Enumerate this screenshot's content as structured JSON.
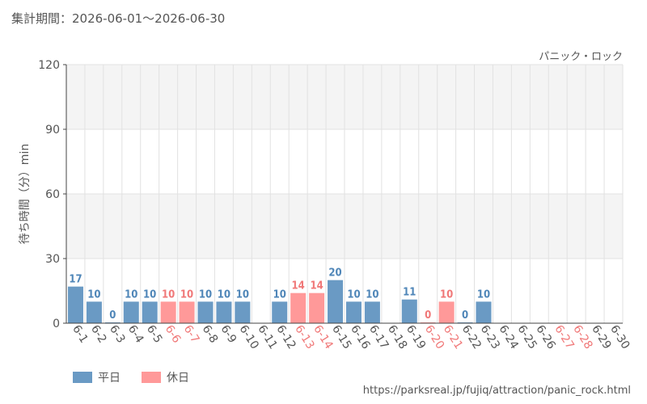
{
  "header": {
    "period_label": "集計期間：2026-06-01～2026-06-30"
  },
  "footer": {
    "url": "https://parksreal.jp/fujiq/attraction/panic_rock.html"
  },
  "colors": {
    "weekday": "#6a9ac4",
    "weekday_label": "#4f86b8",
    "holiday": "#ff9999",
    "holiday_label": "#f07878",
    "band": "#f4f4f4",
    "grid": "#e2e2e2",
    "axis": "#444444"
  },
  "chart_data": {
    "type": "bar",
    "title": "パニック・ロック",
    "ylabel": "待ち時間（分）min",
    "ylim": [
      0,
      120
    ],
    "yticks": [
      "0",
      "30",
      "60",
      "90",
      "120"
    ],
    "legend": {
      "position": "bottom-left",
      "items": [
        {
          "label": "平日",
          "kind": "weekday"
        },
        {
          "label": "休日",
          "kind": "holiday"
        }
      ]
    },
    "categories": [
      "6-1",
      "6-2",
      "6-3",
      "6-4",
      "6-5",
      "6-6",
      "6-7",
      "6-8",
      "6-9",
      "6-10",
      "6-11",
      "6-12",
      "6-13",
      "6-14",
      "6-15",
      "6-16",
      "6-17",
      "6-18",
      "6-19",
      "6-20",
      "6-21",
      "6-22",
      "6-23",
      "6-24",
      "6-25",
      "6-26",
      "6-27",
      "6-28",
      "6-29",
      "6-30"
    ],
    "day_type": [
      "weekday",
      "weekday",
      "weekday",
      "weekday",
      "weekday",
      "holiday",
      "holiday",
      "weekday",
      "weekday",
      "weekday",
      "weekday",
      "weekday",
      "holiday",
      "holiday",
      "weekday",
      "weekday",
      "weekday",
      "weekday",
      "weekday",
      "holiday",
      "holiday",
      "weekday",
      "weekday",
      "weekday",
      "weekday",
      "weekday",
      "holiday",
      "holiday",
      "weekday",
      "weekday"
    ],
    "values": [
      17,
      10,
      0,
      10,
      10,
      10,
      10,
      10,
      10,
      10,
      null,
      10,
      14,
      14,
      20,
      10,
      10,
      null,
      11,
      0,
      10,
      0,
      10,
      null,
      null,
      null,
      null,
      null,
      null,
      null
    ]
  }
}
